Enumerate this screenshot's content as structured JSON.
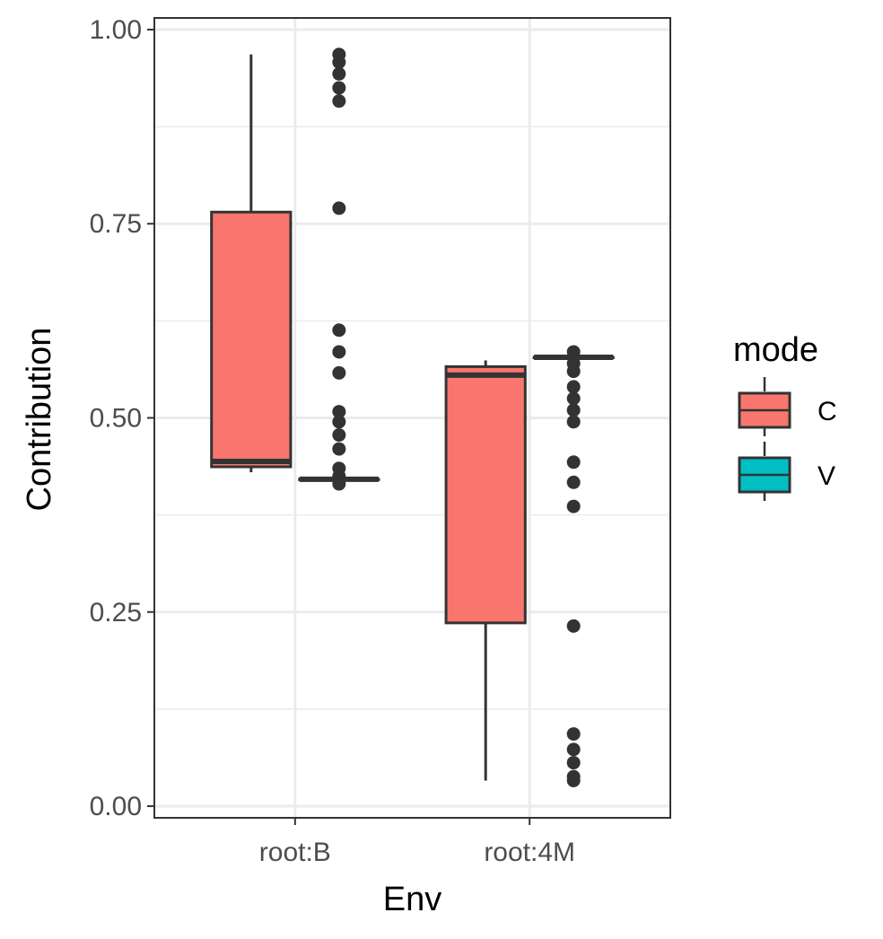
{
  "chart_data": {
    "type": "box",
    "xlabel": "Env",
    "ylabel": "Contribution",
    "categories": [
      "root:B",
      "root:4M"
    ],
    "ylim": [
      -0.015,
      1.015
    ],
    "y_ticks": [
      0.0,
      0.25,
      0.5,
      0.75,
      1.0
    ],
    "y_tick_labels": [
      "0.00",
      "0.25",
      "0.50",
      "0.75",
      "1.00"
    ],
    "grid": true,
    "legend": {
      "title": "mode",
      "position": "right",
      "entries": [
        {
          "label": "C",
          "color": "#F8766D"
        },
        {
          "label": "V",
          "color": "#00BFC4"
        }
      ]
    },
    "series": [
      {
        "name": "C",
        "color": "#F8766D",
        "boxes": [
          {
            "category": "root:B",
            "whisker_low": 0.43,
            "q1": 0.437,
            "median": 0.444,
            "q3": 0.765,
            "whisker_high": 0.968,
            "outliers": []
          },
          {
            "category": "root:4M",
            "whisker_low": 0.033,
            "q1": 0.236,
            "median": 0.555,
            "q3": 0.566,
            "whisker_high": 0.574,
            "outliers": []
          }
        ]
      },
      {
        "name": "V",
        "color": "#00BFC4",
        "boxes": [
          {
            "category": "root:B",
            "whisker_low": 0.421,
            "q1": 0.421,
            "median": 0.421,
            "q3": 0.421,
            "whisker_high": 0.421,
            "outliers": [
              0.968,
              0.958,
              0.943,
              0.925,
              0.908,
              0.77,
              0.613,
              0.585,
              0.558,
              0.508,
              0.495,
              0.478,
              0.46,
              0.435,
              0.425,
              0.415
            ]
          },
          {
            "category": "root:4M",
            "whisker_low": 0.578,
            "q1": 0.578,
            "median": 0.578,
            "q3": 0.578,
            "whisker_high": 0.578,
            "outliers": [
              0.585,
              0.57,
              0.56,
              0.54,
              0.525,
              0.51,
              0.495,
              0.443,
              0.417,
              0.386,
              0.232,
              0.093,
              0.073,
              0.056,
              0.038,
              0.033
            ]
          }
        ]
      }
    ]
  }
}
